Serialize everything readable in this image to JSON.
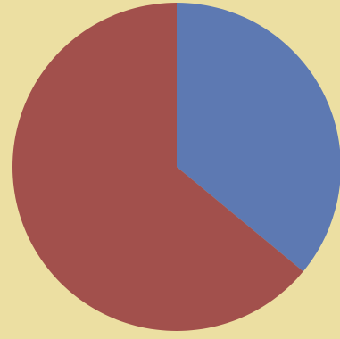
{
  "colors": {
    "background": "#ecdfa2",
    "slice_blue": "#5d79b2",
    "slice_red": "#a2504c"
  },
  "chart_data": {
    "type": "pie",
    "title": "",
    "legend": false,
    "data_labels": false,
    "start_angle_deg": 0,
    "direction": "clockwise",
    "slices": [
      {
        "value": 36,
        "color": "#5d79b2"
      },
      {
        "value": 64,
        "color": "#a2504c"
      }
    ]
  }
}
